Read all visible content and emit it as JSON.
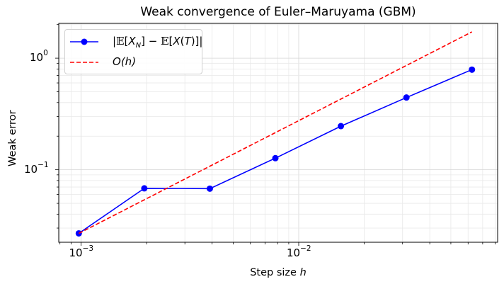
{
  "chart_data": {
    "type": "line",
    "title": "Weak convergence of Euler–Maruyama (GBM)",
    "xlabel": "Step size h",
    "ylabel": "Weak error",
    "xscale": "log",
    "yscale": "log",
    "xlim": [
      0.00079,
      0.082
    ],
    "ylim": [
      0.0224,
      2.05
    ],
    "grid": true,
    "grid_minor": true,
    "legend_position": "upper left",
    "x_ticks": [
      {
        "base": "10",
        "exp": "−3",
        "value": 0.001
      },
      {
        "base": "10",
        "exp": "−2",
        "value": 0.01
      }
    ],
    "y_ticks": [
      {
        "base": "10",
        "exp": "−1",
        "value": 0.1
      },
      {
        "base": "10",
        "exp": "0",
        "value": 1
      }
    ],
    "series": [
      {
        "name": "|𝔼[X_N] − 𝔼[X(T)]|",
        "legend_label": "|𝔼[X_N] − 𝔼[X(T)]|",
        "color": "#0000ff",
        "style": "solid",
        "marker": "circle",
        "x": [
          0.0009765625,
          0.001953125,
          0.00390625,
          0.0078125,
          0.015625,
          0.03125,
          0.0625
        ],
        "values": [
          0.0269,
          0.0681,
          0.0677,
          0.127,
          0.246,
          0.444,
          0.789
        ]
      },
      {
        "name": "O(h)",
        "legend_label": "O(h)",
        "color": "#ff0000",
        "style": "dashed",
        "marker": "none",
        "x": [
          0.0009765625,
          0.0625
        ],
        "values": [
          0.0269,
          1.72
        ]
      }
    ]
  }
}
